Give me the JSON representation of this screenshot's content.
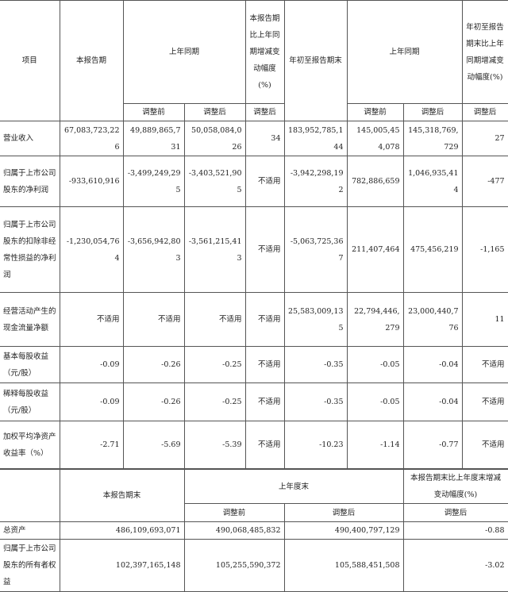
{
  "top_table": {
    "headers": {
      "item": "项目",
      "current_period": "本报告期",
      "prior_same_period": "上年同期",
      "change_pct": "本报告期比上年同期增减变动幅度(%)",
      "ytd": "年初至报告期末",
      "prior_same_period_ytd": "上年同期",
      "ytd_change_pct": "年初至报告期末比上年同期增减变动幅度(%)",
      "before_adj": "调整前",
      "after_adj": "调整后"
    },
    "rows": [
      {
        "label": "营业收入",
        "values": [
          "67,083,723,226",
          "49,889,865,731",
          "50,058,084,026",
          "34",
          "183,952,785,144",
          "145,005,454,078",
          "145,318,769,729",
          "27"
        ]
      },
      {
        "label": "归属于上市公司股东的净利润",
        "values": [
          "-933,610,916",
          "-3,499,249,295",
          "-3,403,521,905",
          "不适用",
          "-3,942,298,192",
          "782,886,659",
          "1,046,935,414",
          "-477"
        ]
      },
      {
        "label": "归属于上市公司股东的扣除非经常性损益的净利润",
        "values": [
          "-1,230,054,764",
          "-3,656,942,803",
          "-3,561,215,413",
          "不适用",
          "-5,063,725,367",
          "211,407,464",
          "475,456,219",
          "-1,165"
        ]
      },
      {
        "label": "经营活动产生的现金流量净额",
        "values": [
          "不适用",
          "不适用",
          "不适用",
          "不适用",
          "25,583,009,135",
          "22,794,446,279",
          "23,000,440,776",
          "11"
        ]
      },
      {
        "label": "基本每股收益（元/股）",
        "values": [
          "-0.09",
          "-0.26",
          "-0.25",
          "不适用",
          "-0.35",
          "-0.05",
          "-0.04",
          "不适用"
        ]
      },
      {
        "label": "稀释每股收益（元/股）",
        "values": [
          "-0.09",
          "-0.26",
          "-0.25",
          "不适用",
          "-0.35",
          "-0.05",
          "-0.04",
          "不适用"
        ]
      },
      {
        "label": "加权平均净资产收益率（%）",
        "values": [
          "-2.71",
          "-5.69",
          "-5.39",
          "不适用",
          "-10.23",
          "-1.14",
          "-0.77",
          "不适用"
        ]
      }
    ]
  },
  "bottom_table": {
    "headers": {
      "period_end": "本报告期末",
      "prior_year_end": "上年度末",
      "change_pct": "本报告期末比上年度末增减变动幅度(%)",
      "before_adj": "调整前",
      "after_adj": "调整后",
      "after_adj_2": "调整后"
    },
    "rows": [
      {
        "label": "总资产",
        "values": [
          "486,109,693,071",
          "490,068,485,832",
          "490,400,797,129",
          "-0.88"
        ]
      },
      {
        "label": "归属于上市公司股东的所有者权益",
        "values": [
          "102,397,165,148",
          "105,255,590,372",
          "105,588,451,508",
          "-3.02"
        ]
      }
    ]
  }
}
